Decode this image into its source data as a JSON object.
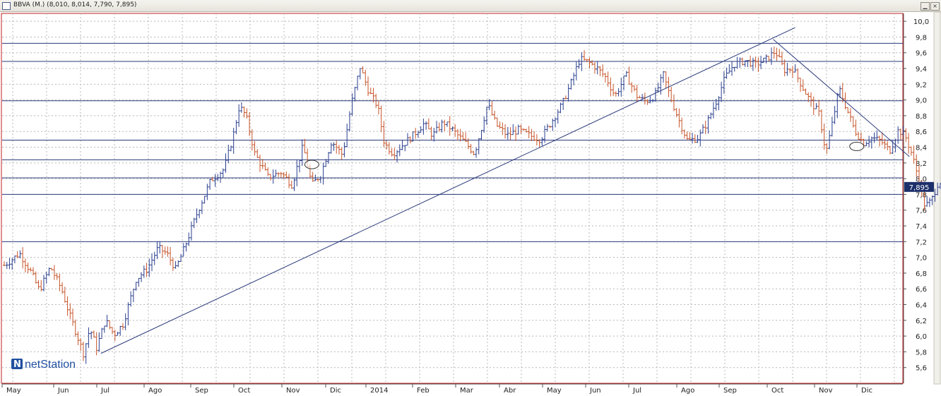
{
  "window": {
    "title": "BBVA (M.) (8,010, 8,014, 7,790, 7,895)",
    "minimize_glyph": "▁",
    "close_glyph": "×"
  },
  "brand": {
    "logo_text": "netStation",
    "logo_icon": "n-logo-icon"
  },
  "colors": {
    "up_bar": "#2a3f8f",
    "down_bar": "#c8552a",
    "grid": "#b8b8b8",
    "hline": "#2a3a7a",
    "trendline": "#2a3a7a",
    "frame": "#c02020",
    "price_badge": "#1c2f6b"
  },
  "chart_data": {
    "type": "ohlc",
    "title": "BBVA (M.) (8,010, 8,014, 7,790, 7,895)",
    "xlabel": "",
    "ylabel": "",
    "ylim": [
      5.4,
      10.1
    ],
    "y_ticks": [
      "10,0",
      "9,8",
      "9,6",
      "9,4",
      "9,2",
      "9,0",
      "8,8",
      "8,6",
      "8,4",
      "8,2",
      "8,0",
      "7,8",
      "7,6",
      "7,4",
      "7,2",
      "7,0",
      "6,8",
      "6,6",
      "6,4",
      "6,2",
      "6,0",
      "5,8",
      "5,6"
    ],
    "x_labels": [
      "May",
      "Jun",
      "Jul",
      "Ago",
      "Sep",
      "Oct",
      "Nov",
      "Dic",
      "2014",
      "Feb",
      "Mar",
      "Abr",
      "May",
      "Jun",
      "Jul",
      "Ago",
      "Sep",
      "Oct",
      "Nov",
      "Dic"
    ],
    "last_price_label": "7,895",
    "last_price": 7.895,
    "horizontal_levels": [
      9.72,
      9.49,
      8.99,
      8.49,
      8.24,
      8.01,
      7.8,
      7.2
    ],
    "ascending_trendline": {
      "start": {
        "month": 2.2,
        "price": 5.78
      },
      "end": {
        "month": 18.0,
        "price": 9.92
      }
    },
    "descending_trendline": {
      "start": {
        "month": 17.5,
        "price": 9.77
      },
      "end": {
        "month": 20.6,
        "price": 8.28
      }
    },
    "highlighted_points": [
      {
        "month": 7.0,
        "price": 8.18
      },
      {
        "month": 19.4,
        "price": 8.41
      }
    ],
    "price_path": [
      [
        0.0,
        6.9
      ],
      [
        0.35,
        7.05
      ],
      [
        0.6,
        6.82
      ],
      [
        0.8,
        6.58
      ],
      [
        1.05,
        6.88
      ],
      [
        1.3,
        6.6
      ],
      [
        1.5,
        6.25
      ],
      [
        1.65,
        6.02
      ],
      [
        1.8,
        5.78
      ],
      [
        1.95,
        6.1
      ],
      [
        2.1,
        5.85
      ],
      [
        2.3,
        6.2
      ],
      [
        2.5,
        6.02
      ],
      [
        2.7,
        6.15
      ],
      [
        3.0,
        6.72
      ],
      [
        3.25,
        6.85
      ],
      [
        3.5,
        7.12
      ],
      [
        3.7,
        7.05
      ],
      [
        3.9,
        6.85
      ],
      [
        4.1,
        7.12
      ],
      [
        4.4,
        7.58
      ],
      [
        4.7,
        7.98
      ],
      [
        5.0,
        8.12
      ],
      [
        5.2,
        8.52
      ],
      [
        5.35,
        8.92
      ],
      [
        5.5,
        8.8
      ],
      [
        5.7,
        8.32
      ],
      [
        6.0,
        8.02
      ],
      [
        6.3,
        8.08
      ],
      [
        6.55,
        7.92
      ],
      [
        6.8,
        8.42
      ],
      [
        7.0,
        7.92
      ],
      [
        7.2,
        8.05
      ],
      [
        7.45,
        8.48
      ],
      [
        7.7,
        8.3
      ],
      [
        7.9,
        8.95
      ],
      [
        8.1,
        9.42
      ],
      [
        8.3,
        9.1
      ],
      [
        8.5,
        8.92
      ],
      [
        8.65,
        8.45
      ],
      [
        8.85,
        8.32
      ],
      [
        9.05,
        8.42
      ],
      [
        9.3,
        8.55
      ],
      [
        9.55,
        8.7
      ],
      [
        9.75,
        8.55
      ],
      [
        10.0,
        8.72
      ],
      [
        10.2,
        8.62
      ],
      [
        10.5,
        8.45
      ],
      [
        10.7,
        8.32
      ],
      [
        10.85,
        8.62
      ],
      [
        11.0,
        8.95
      ],
      [
        11.2,
        8.68
      ],
      [
        11.45,
        8.55
      ],
      [
        11.7,
        8.62
      ],
      [
        11.95,
        8.55
      ],
      [
        12.2,
        8.5
      ],
      [
        12.45,
        8.72
      ],
      [
        12.7,
        8.95
      ],
      [
        12.9,
        9.22
      ],
      [
        13.1,
        9.52
      ],
      [
        13.3,
        9.48
      ],
      [
        13.5,
        9.4
      ],
      [
        13.7,
        9.28
      ],
      [
        13.9,
        9.05
      ],
      [
        14.15,
        9.32
      ],
      [
        14.4,
        9.05
      ],
      [
        14.6,
        8.98
      ],
      [
        14.8,
        9.05
      ],
      [
        15.0,
        9.32
      ],
      [
        15.15,
        9.05
      ],
      [
        15.35,
        8.75
      ],
      [
        15.55,
        8.48
      ],
      [
        15.8,
        8.52
      ],
      [
        16.0,
        8.72
      ],
      [
        16.2,
        8.98
      ],
      [
        16.4,
        9.28
      ],
      [
        16.6,
        9.45
      ],
      [
        16.85,
        9.5
      ],
      [
        17.1,
        9.45
      ],
      [
        17.35,
        9.52
      ],
      [
        17.55,
        9.62
      ],
      [
        17.75,
        9.38
      ],
      [
        17.95,
        9.4
      ],
      [
        18.15,
        9.18
      ],
      [
        18.35,
        8.98
      ],
      [
        18.55,
        8.82
      ],
      [
        18.7,
        8.32
      ],
      [
        18.85,
        8.72
      ],
      [
        19.0,
        9.15
      ],
      [
        19.15,
        8.92
      ],
      [
        19.35,
        8.62
      ],
      [
        19.55,
        8.45
      ],
      [
        19.75,
        8.52
      ],
      [
        19.95,
        8.48
      ],
      [
        20.15,
        8.35
      ],
      [
        20.35,
        8.62
      ],
      [
        20.5,
        8.55
      ],
      [
        20.65,
        8.32
      ],
      [
        20.82,
        7.98
      ],
      [
        20.95,
        7.65
      ],
      [
        21.1,
        7.72
      ],
      [
        21.25,
        7.95
      ],
      [
        21.4,
        7.98
      ],
      [
        21.55,
        7.9
      ]
    ],
    "grid": true,
    "legend": "none"
  }
}
